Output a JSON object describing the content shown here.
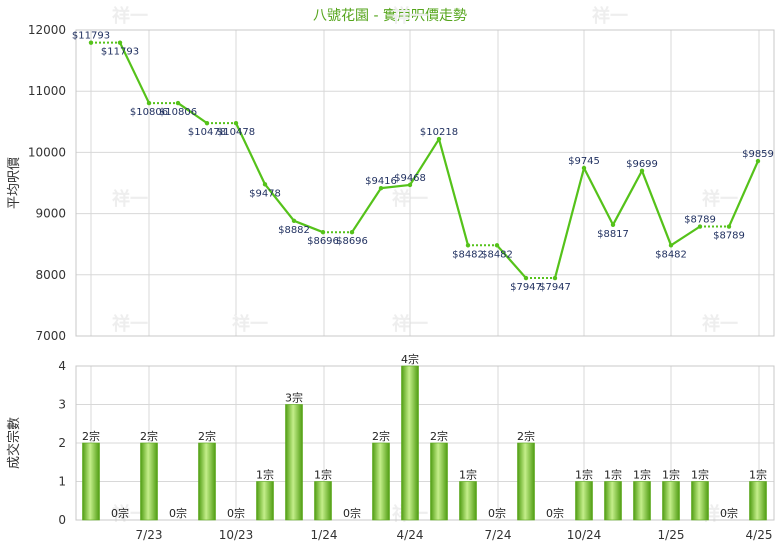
{
  "chart_data": [
    {
      "type": "line",
      "title": "八號花園 - 實用呎價走勢",
      "ylabel": "平均呎價",
      "ylim": [
        7000,
        12000
      ],
      "yticks": [
        7000,
        8000,
        9000,
        10000,
        11000,
        12000
      ],
      "grid": true,
      "point_labels": [
        "$11793",
        "$11793",
        "$10806",
        "$10806",
        "$10478",
        "$10478",
        "$9478",
        "$8882",
        "$8696",
        "$8696",
        "$9416",
        "$9468",
        "$10218",
        "$8482",
        "$8482",
        "$7947",
        "$7947",
        "$9745",
        "$8817",
        "$9699",
        "$8482",
        "$8789",
        "$8789",
        "$9859"
      ],
      "values": [
        11793,
        11793,
        10806,
        10806,
        10478,
        10478,
        9478,
        8882,
        8696,
        8696,
        9416,
        9468,
        10218,
        8482,
        8482,
        7947,
        7947,
        9745,
        8817,
        9699,
        8482,
        8789,
        8789,
        9859
      ],
      "flat": [
        true,
        false,
        true,
        false,
        true,
        false,
        false,
        false,
        true,
        false,
        false,
        false,
        false,
        true,
        false,
        true,
        false,
        false,
        false,
        false,
        false,
        true,
        false
      ]
    },
    {
      "type": "bar",
      "ylabel": "成交宗數",
      "ylim": [
        0,
        4
      ],
      "yticks": [
        0,
        1,
        2,
        3,
        4
      ],
      "grid": true,
      "categories": [
        "7/23",
        "10/23",
        "1/24",
        "4/24",
        "7/24",
        "10/24",
        "1/25",
        "4/25"
      ],
      "values": [
        2,
        0,
        2,
        0,
        2,
        0,
        1,
        3,
        1,
        0,
        2,
        4,
        2,
        1,
        0,
        2,
        0,
        1,
        1,
        1,
        1,
        1,
        0,
        1
      ],
      "labels": [
        "2宗",
        "0宗",
        "2宗",
        "0宗",
        "2宗",
        "0宗",
        "1宗",
        "3宗",
        "1宗",
        "0宗",
        "2宗",
        "4宗",
        "2宗",
        "1宗",
        "0宗",
        "2宗",
        "0宗",
        "1宗",
        "1宗",
        "1宗",
        "1宗",
        "1宗",
        "0宗",
        "1宗"
      ]
    }
  ],
  "watermark": "祥一",
  "colors": {
    "line": "#55c21a",
    "bar_light": "#b7e67a",
    "bar_dark": "#4f9c12",
    "title": "#55a51c",
    "grid": "#d8d8d8"
  }
}
